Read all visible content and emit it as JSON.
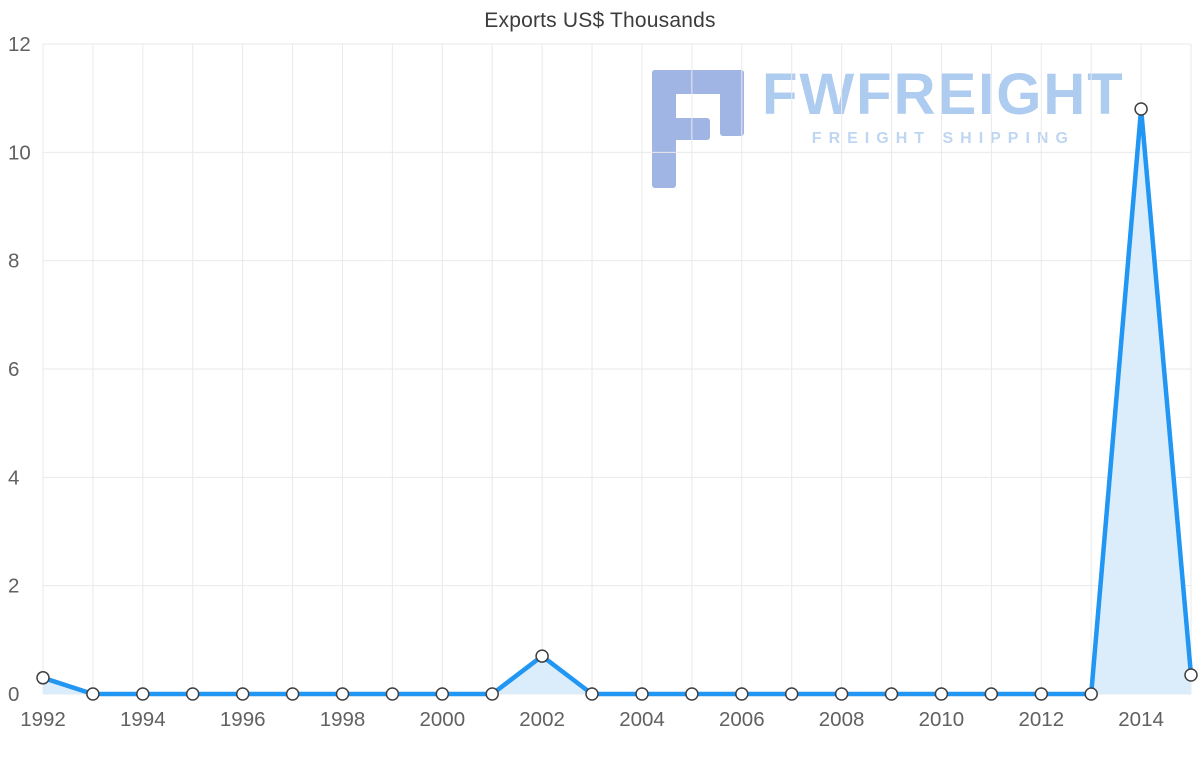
{
  "chart_data": {
    "type": "area",
    "title": "Exports US$ Thousands",
    "x": [
      1992,
      1993,
      1994,
      1995,
      1996,
      1997,
      1998,
      1999,
      2000,
      2001,
      2002,
      2003,
      2004,
      2005,
      2006,
      2007,
      2008,
      2009,
      2010,
      2011,
      2012,
      2013,
      2014,
      2015
    ],
    "values": [
      0.3,
      0,
      0,
      0,
      0,
      0,
      0,
      0,
      0,
      0,
      0.7,
      0,
      0,
      0,
      0,
      0,
      0,
      0,
      0,
      0,
      0,
      0,
      10.8,
      0.35
    ],
    "series_name": "Exports",
    "xlabel": "",
    "ylabel": "",
    "ylim": [
      0,
      12
    ],
    "yticks": [
      0,
      2,
      4,
      6,
      8,
      10,
      12
    ],
    "ytick_labels": [
      "0",
      "2",
      "4",
      "6",
      "8",
      "10",
      "12"
    ],
    "xticks": [
      1992,
      1994,
      1996,
      1998,
      2000,
      2002,
      2004,
      2006,
      2008,
      2010,
      2012,
      2014
    ],
    "grid": true,
    "legend": "none",
    "colors": {
      "line": "#2196f3",
      "area_fill": "#dbecfb",
      "marker_fill": "#ffffff",
      "marker_stroke": "#404040",
      "grid": "#e9e9e9",
      "tick_text": "#616161",
      "title_text": "#3c3c3c"
    }
  },
  "watermark": {
    "brand": "FWFREIGHT",
    "tagline": "FREIGHT SHIPPING",
    "logo_icon": "fwfreight-logo",
    "colors": {
      "logo": "#96aee2",
      "brand": "#a6c6ef",
      "tagline": "#b9d2f1"
    }
  }
}
